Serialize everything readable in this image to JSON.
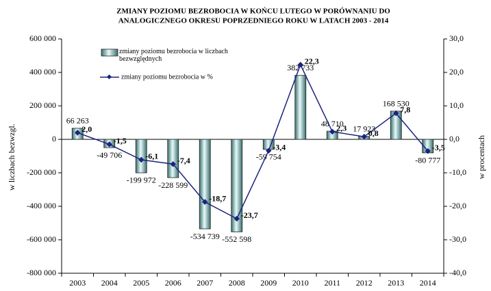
{
  "chart_data": {
    "type": "bar",
    "title": [
      "ZMIANY POZIOMU BEZROBOCIA W  KOŃCU  LUTEGO  W PORÓWNANIU DO",
      "ANALOGICZNEGO OKRESU POPRZEDNIEGO ROKU    W LATACH  2003 - 2014"
    ],
    "y_label": "w liczbach bezwzgl.",
    "y2_label": "w procentach",
    "categories": [
      "2003",
      "2004",
      "2005",
      "2006",
      "2007",
      "2008",
      "2009",
      "2010",
      "2011",
      "2012",
      "2013",
      "2014"
    ],
    "series": [
      {
        "name": "zmiany poziomu bezrobocia w liczbach bezwzględnych",
        "type": "bar",
        "color": "#a8dede",
        "values": [
          66263,
          -49706,
          -199972,
          -228599,
          -534739,
          -552598,
          -59754,
          382733,
          48710,
          17923,
          168530,
          -80777
        ],
        "value_labels": [
          "66 263",
          "-49 706",
          "-199 972",
          "-228 599",
          "-534 739",
          "-552 598",
          "-59 754",
          "382 733",
          "48 710",
          "17 923",
          "168 530",
          "-80 777"
        ]
      },
      {
        "name": "zmiany poziomu bezrobocia w %",
        "type": "line",
        "axis": "y2",
        "color": "#1a237e",
        "values": [
          2.0,
          -1.5,
          -6.1,
          -7.4,
          -18.7,
          -23.7,
          -3.4,
          22.3,
          2.3,
          0.8,
          7.8,
          -3.5
        ],
        "value_labels": [
          "2,0",
          "-1,5",
          "-6,1",
          "-7,4",
          "-18,7",
          "-23,7",
          "-3,4",
          "22,3",
          "2,3",
          "0,8",
          "7,8",
          "-3,5"
        ]
      }
    ],
    "ylim": [
      -800000,
      600000
    ],
    "yticks": [
      {
        "value": -800000,
        "label": "-800 000"
      },
      {
        "value": -600000,
        "label": "-600 000"
      },
      {
        "value": -400000,
        "label": "-400 000"
      },
      {
        "value": -200000,
        "label": "-200 000"
      },
      0,
      {
        "value": 200000,
        "label": "200 000"
      },
      {
        "value": 400000,
        "label": "400 000"
      },
      {
        "value": 600000,
        "label": "600 000"
      }
    ],
    "y2lim": [
      -40,
      30
    ],
    "y2ticks": [
      {
        "value": -40,
        "label": "-40,0"
      },
      {
        "value": -30,
        "label": "-30,0"
      },
      {
        "value": -20,
        "label": "-20,0"
      },
      {
        "value": -10,
        "label": "-10,0"
      },
      {
        "value": 0,
        "label": "0,0"
      },
      {
        "value": 10,
        "label": "10,0"
      },
      {
        "value": 20,
        "label": "20,0"
      },
      {
        "value": 30,
        "label": "30,0"
      }
    ]
  }
}
